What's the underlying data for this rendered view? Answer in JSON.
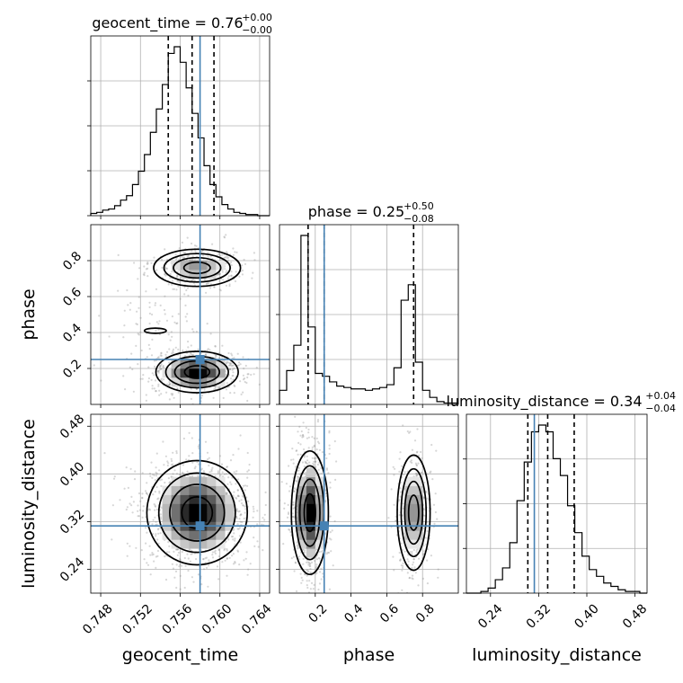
{
  "chart_data": {
    "type": "corner",
    "parameters": [
      {
        "key": "geocent_time",
        "label": "geocent_time",
        "range": [
          0.747,
          0.765
        ],
        "ticks": [
          "0.748",
          "0.752",
          "0.756",
          "0.760",
          "0.764"
        ],
        "truth": 0.758,
        "quantiles": [
          0.7548,
          0.7572,
          0.7594
        ],
        "title_main": "geocent_time = 0.76",
        "title_sup": "+0.00",
        "title_sub": "−0.00",
        "hist_bins": {
          "edges_start": 0.747,
          "bin_width": 0.0006,
          "counts": [
            2,
            3,
            5,
            6,
            9,
            14,
            18,
            28,
            40,
            55,
            75,
            96,
            118,
            146,
            152,
            138,
            115,
            92,
            70,
            45,
            28,
            17,
            10,
            6,
            3,
            2,
            1,
            1,
            0,
            0
          ]
        }
      },
      {
        "key": "phase",
        "label": "phase",
        "range": [
          0.0,
          1.0
        ],
        "ticks": [
          "0.2",
          "0.4",
          "0.6",
          "0.8"
        ],
        "truth": 0.25,
        "quantiles": [
          0.16,
          0.25,
          0.75
        ],
        "title_main": "phase = 0.25",
        "title_sup": "+0.50",
        "title_sub": "−0.08",
        "hist_bins": {
          "edges_start": 0.0,
          "bin_width": 0.04,
          "counts": [
            10,
            24,
            42,
            120,
            55,
            22,
            20,
            16,
            13,
            12,
            11,
            11,
            10,
            11,
            12,
            14,
            26,
            74,
            85,
            30,
            10,
            5,
            2,
            1,
            1
          ]
        }
      },
      {
        "key": "luminosity_distance",
        "label": "luminosity_distance",
        "range": [
          0.2,
          0.5
        ],
        "ticks": [
          "0.24",
          "0.32",
          "0.40",
          "0.48"
        ],
        "truth": 0.3128,
        "quantiles": [
          0.302,
          0.335,
          0.379
        ],
        "title_main": "luminosity_distance = 0.34",
        "title_sup": "+0.04",
        "title_sub": "−0.04",
        "hist_bins": {
          "edges_start": 0.2,
          "bin_width": 0.012,
          "counts": [
            0,
            0,
            1,
            3,
            8,
            15,
            30,
            55,
            78,
            96,
            100,
            96,
            80,
            70,
            52,
            36,
            22,
            14,
            10,
            6,
            4,
            2,
            1,
            1,
            0
          ]
        }
      }
    ],
    "pair_densities": [
      {
        "x": "geocent_time",
        "y": "phase",
        "modes": [
          {
            "mx": 0.7577,
            "my": 0.18,
            "sx": 0.0018,
            "sy": 0.05,
            "weight": 0.62
          },
          {
            "mx": 0.7577,
            "my": 0.76,
            "sx": 0.0019,
            "sy": 0.045,
            "weight": 0.32
          },
          {
            "mx": 0.7535,
            "my": 0.41,
            "sx": 0.0022,
            "sy": 0.12,
            "weight": 0.06
          }
        ]
      },
      {
        "x": "geocent_time",
        "y": "luminosity_distance",
        "modes": [
          {
            "mx": 0.7577,
            "my": 0.335,
            "sx": 0.0022,
            "sy": 0.038,
            "weight": 1.0
          }
        ]
      },
      {
        "x": "phase",
        "y": "luminosity_distance",
        "modes": [
          {
            "mx": 0.17,
            "my": 0.335,
            "sx": 0.045,
            "sy": 0.045,
            "weight": 0.62
          },
          {
            "mx": 0.75,
            "my": 0.335,
            "sx": 0.04,
            "sy": 0.042,
            "weight": 0.38
          }
        ]
      }
    ],
    "grid": true,
    "truth_color": "#4682b4",
    "contour_color": "#000000"
  }
}
